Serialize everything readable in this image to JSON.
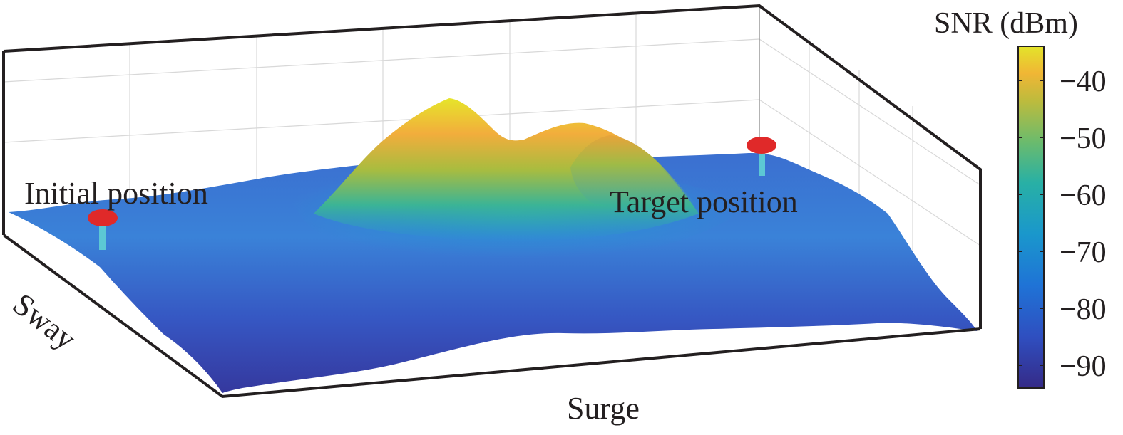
{
  "chart_data": {
    "type": "surface",
    "xlabel": "Surge",
    "ylabel": "Sway",
    "colorbar": {
      "title": "SNR (dBm)",
      "ticks": [
        -40,
        -50,
        -60,
        -70,
        -80,
        -90
      ],
      "tick_labels": [
        "−40",
        "−50",
        "−60",
        "−70",
        "−80",
        "−90"
      ],
      "range": [
        -94,
        -34
      ],
      "colormap": "parula"
    },
    "annotations": [
      {
        "text": "Initial position",
        "snr": -72
      },
      {
        "text": "Target position",
        "snr": -70
      }
    ],
    "peaks": [
      {
        "snr": -35
      },
      {
        "snr": -46
      },
      {
        "snr": -44
      }
    ],
    "grid": true
  }
}
